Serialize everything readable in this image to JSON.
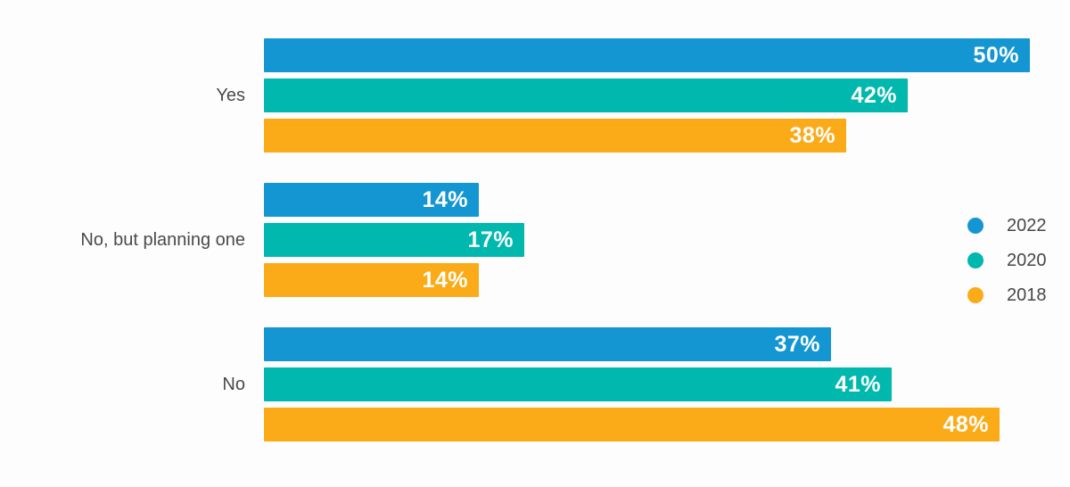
{
  "chart_data": {
    "type": "bar",
    "orientation": "horizontal",
    "title": "",
    "categories": [
      "Yes",
      "No, but planning one",
      "No"
    ],
    "series": [
      {
        "name": "2022",
        "color": "#1496d2",
        "values": [
          50,
          14,
          37
        ]
      },
      {
        "name": "2020",
        "color": "#00b8ae",
        "values": [
          42,
          17,
          41
        ]
      },
      {
        "name": "2018",
        "color": "#fbab18",
        "values": [
          38,
          14,
          48
        ]
      }
    ],
    "value_suffix": "%",
    "value_labels": "inside-end",
    "xlim": [
      0,
      50
    ],
    "grid": false,
    "axes_visible": false,
    "legend_position": "right",
    "legend_labels": [
      "2022",
      "2020",
      "2018"
    ]
  },
  "colors": {
    "background": "#fdfdfd",
    "category_text": "#4a4a4a",
    "legend_text": "#474747",
    "value_text": "#ffffff"
  }
}
